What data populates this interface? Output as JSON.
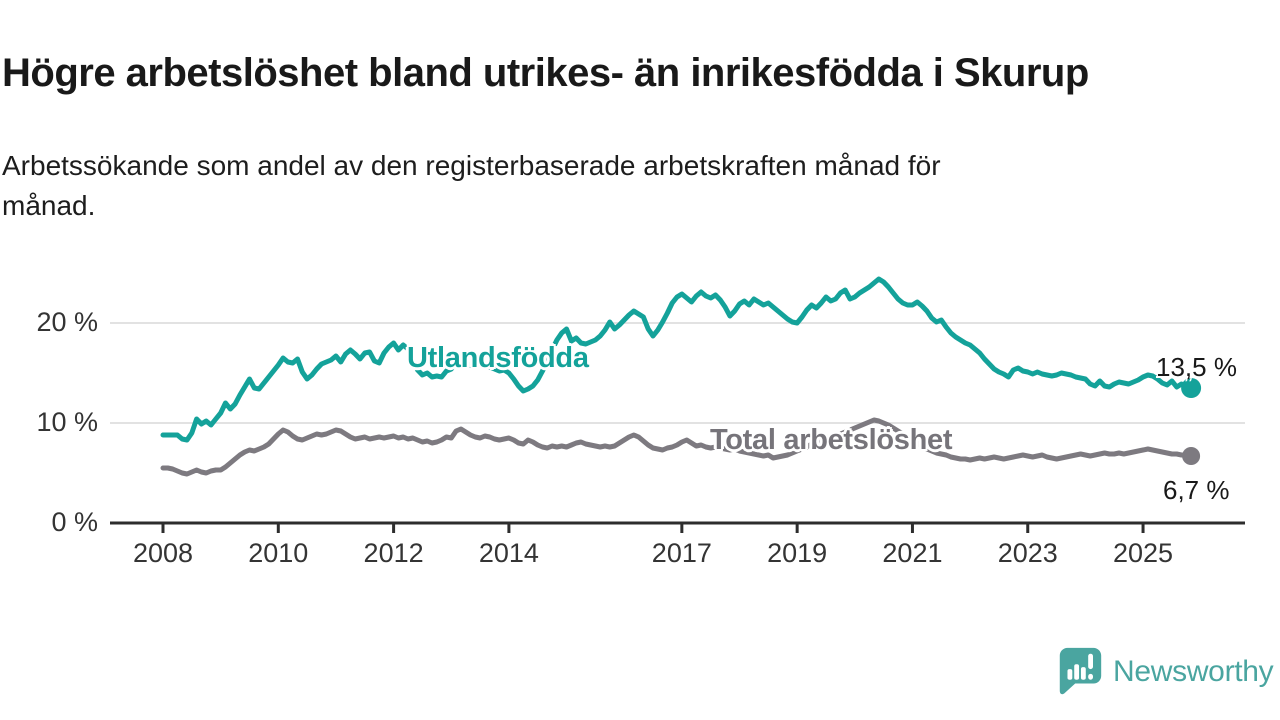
{
  "header": {
    "title": "Högre arbetslöshet bland utrikes- än inrikesfödda i Skurup",
    "subtitle_line1": "Arbetssökande som andel av den registerbaserade arbetskraften månad för",
    "subtitle_line2": "månad."
  },
  "colors": {
    "teal_line": "#14a29a",
    "gray_line": "#7d7a80",
    "gray_label": "#76747a",
    "axis_line": "#2d2d2d",
    "axis_text": "#343434",
    "gridline": "#d8d8d8",
    "text_dark": "#191919",
    "logo_teal": "#4aa5a0"
  },
  "chart_data": {
    "type": "line",
    "title": "Högre arbetslöshet bland utrikes- än inrikesfödda i Skurup",
    "subtitle": "Arbetssökande som andel av den registerbaserade arbetskraften månad för månad.",
    "x_unit": "month",
    "x_start": "2008-01",
    "x_end": "2025-11",
    "x_ticks": [
      2008,
      2010,
      2012,
      2014,
      2017,
      2019,
      2021,
      2023,
      2025
    ],
    "y_ticks": [
      {
        "value": 0,
        "label": "0 %"
      },
      {
        "value": 10,
        "label": "10 %"
      },
      {
        "value": 20,
        "label": "20 %"
      }
    ],
    "ylim": [
      0,
      26
    ],
    "grid": "horizontal",
    "legend_position": "inline-labels",
    "series": [
      {
        "id": "utlandsfodda",
        "name": "Utlandsfödda",
        "color": "#14a29a",
        "end_label": "13,5 %",
        "last_value": 13.5,
        "values": [
          8.8,
          8.8,
          8.8,
          8.8,
          8.4,
          8.3,
          9.0,
          10.4,
          9.9,
          10.2,
          9.8,
          10.4,
          11.0,
          12.0,
          11.4,
          11.9,
          12.8,
          13.6,
          14.4,
          13.5,
          13.4,
          14.0,
          14.6,
          15.2,
          15.8,
          16.5,
          16.1,
          16.0,
          16.4,
          15.1,
          14.4,
          14.8,
          15.4,
          15.9,
          16.1,
          16.3,
          16.7,
          16.1,
          16.9,
          17.3,
          16.9,
          16.4,
          17.0,
          17.1,
          16.2,
          16.0,
          17.0,
          17.6,
          18.0,
          17.3,
          17.8,
          17.4,
          16.3,
          15.3,
          14.8,
          15.0,
          14.6,
          14.7,
          14.6,
          15.2,
          15.4,
          16.2,
          16.4,
          16.0,
          15.8,
          16.2,
          16.4,
          15.9,
          15.6,
          15.4,
          15.2,
          15.3,
          15.0,
          14.4,
          13.7,
          13.2,
          13.4,
          13.7,
          14.3,
          15.2,
          16.2,
          17.3,
          18.3,
          19.0,
          19.4,
          18.2,
          18.5,
          18.0,
          17.9,
          18.1,
          18.3,
          18.7,
          19.3,
          20.1,
          19.4,
          19.8,
          20.3,
          20.8,
          21.2,
          20.9,
          20.6,
          19.4,
          18.7,
          19.3,
          20.1,
          21.0,
          22.0,
          22.6,
          22.9,
          22.5,
          22.1,
          22.7,
          23.1,
          22.7,
          22.5,
          22.8,
          22.3,
          21.6,
          20.7,
          21.2,
          21.9,
          22.2,
          21.8,
          22.4,
          22.1,
          21.8,
          22.0,
          21.6,
          21.2,
          20.8,
          20.4,
          20.1,
          20.0,
          20.6,
          21.3,
          21.8,
          21.5,
          22.0,
          22.6,
          22.2,
          22.4,
          23.0,
          23.3,
          22.4,
          22.6,
          23.0,
          23.3,
          23.6,
          24.0,
          24.4,
          24.1,
          23.6,
          23.0,
          22.4,
          22.0,
          21.8,
          21.8,
          22.1,
          21.7,
          21.2,
          20.5,
          20.1,
          20.3,
          19.6,
          19.0,
          18.6,
          18.3,
          18.0,
          17.8,
          17.4,
          17.0,
          16.4,
          15.9,
          15.4,
          15.1,
          14.9,
          14.6,
          15.3,
          15.5,
          15.2,
          15.1,
          14.9,
          15.1,
          14.9,
          14.8,
          14.7,
          14.8,
          15.0,
          14.9,
          14.8,
          14.6,
          14.5,
          14.4,
          13.9,
          13.7,
          14.2,
          13.7,
          13.6,
          13.9,
          14.1,
          14.0,
          13.9,
          14.1,
          14.3,
          14.6,
          14.8,
          14.7,
          14.4,
          14.0,
          13.8,
          14.2,
          13.6,
          13.9,
          13.7,
          13.5
        ]
      },
      {
        "id": "total-arbetsloshet",
        "name": "Total arbetslöshet",
        "color": "#7d7a80",
        "end_label": "6,7 %",
        "last_value": 6.7,
        "values": [
          5.5,
          5.5,
          5.4,
          5.2,
          5.0,
          4.9,
          5.1,
          5.3,
          5.1,
          5.0,
          5.2,
          5.3,
          5.3,
          5.6,
          6.0,
          6.4,
          6.8,
          7.1,
          7.3,
          7.2,
          7.4,
          7.6,
          7.9,
          8.4,
          8.9,
          9.3,
          9.1,
          8.7,
          8.4,
          8.3,
          8.5,
          8.7,
          8.9,
          8.8,
          8.9,
          9.1,
          9.3,
          9.2,
          8.9,
          8.6,
          8.4,
          8.5,
          8.6,
          8.4,
          8.5,
          8.6,
          8.5,
          8.6,
          8.7,
          8.5,
          8.6,
          8.4,
          8.5,
          8.3,
          8.1,
          8.2,
          8.0,
          8.1,
          8.3,
          8.6,
          8.5,
          9.2,
          9.4,
          9.1,
          8.8,
          8.6,
          8.5,
          8.7,
          8.6,
          8.4,
          8.3,
          8.4,
          8.5,
          8.3,
          8.0,
          7.9,
          8.3,
          8.1,
          7.8,
          7.6,
          7.5,
          7.7,
          7.6,
          7.7,
          7.6,
          7.8,
          8.0,
          8.1,
          7.9,
          7.8,
          7.7,
          7.6,
          7.7,
          7.6,
          7.7,
          8.0,
          8.3,
          8.6,
          8.8,
          8.6,
          8.2,
          7.8,
          7.5,
          7.4,
          7.3,
          7.5,
          7.6,
          7.8,
          8.1,
          8.3,
          8.0,
          7.7,
          7.8,
          7.6,
          7.5,
          7.6,
          7.5,
          7.4,
          7.3,
          7.4,
          7.2,
          7.1,
          7.0,
          6.9,
          6.8,
          6.7,
          6.8,
          6.5,
          6.6,
          6.7,
          6.8,
          7.0,
          7.2,
          7.4,
          7.6,
          7.9,
          8.1,
          8.4,
          8.6,
          8.5,
          8.7,
          8.9,
          9.1,
          9.3,
          9.5,
          9.7,
          9.9,
          10.1,
          10.3,
          10.2,
          10.0,
          9.8,
          9.5,
          9.2,
          8.9,
          8.6,
          8.3,
          8.0,
          7.7,
          7.4,
          7.2,
          7.0,
          6.9,
          6.8,
          6.6,
          6.5,
          6.4,
          6.4,
          6.3,
          6.4,
          6.5,
          6.4,
          6.5,
          6.6,
          6.5,
          6.4,
          6.5,
          6.6,
          6.7,
          6.8,
          6.7,
          6.6,
          6.7,
          6.8,
          6.6,
          6.5,
          6.4,
          6.5,
          6.6,
          6.7,
          6.8,
          6.9,
          6.8,
          6.7,
          6.8,
          6.9,
          7.0,
          6.9,
          6.9,
          7.0,
          6.9,
          7.0,
          7.1,
          7.2,
          7.3,
          7.4,
          7.3,
          7.2,
          7.1,
          7.0,
          6.9,
          6.9,
          6.8,
          6.8,
          6.7
        ]
      }
    ]
  },
  "logo": {
    "text": "Newsworthy",
    "icon": "newsworthy-speech-bubble-bar-chart-icon"
  }
}
